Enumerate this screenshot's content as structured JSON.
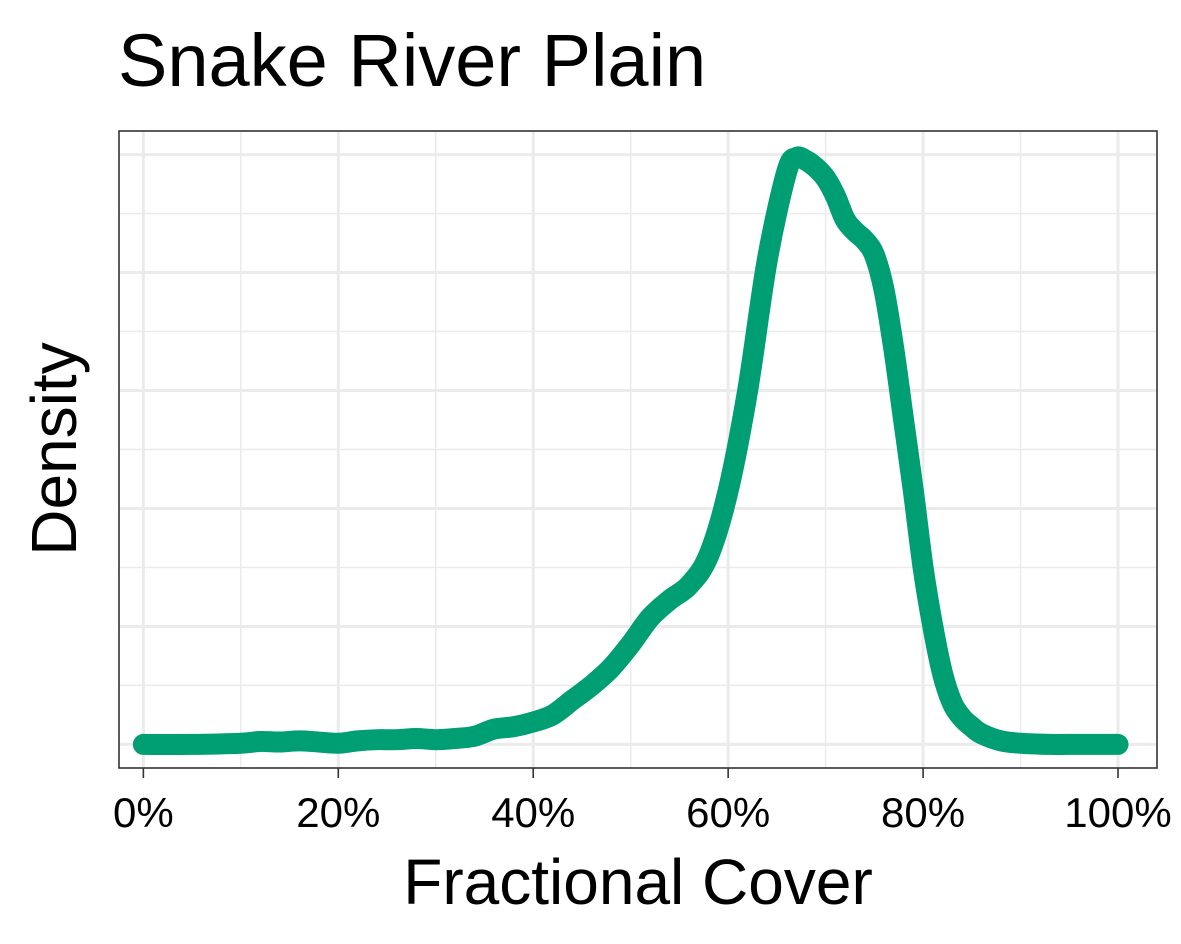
{
  "chart_data": {
    "type": "line",
    "title": "Snake River Plain",
    "xlabel": "Fractional Cover",
    "ylabel": "Density",
    "x_ticks": [
      0,
      20,
      40,
      60,
      80,
      100
    ],
    "x_tick_labels": [
      "0%",
      "20%",
      "40%",
      "60%",
      "80%",
      "100%"
    ],
    "xlim": [
      -2.5,
      104
    ],
    "ylim": [
      -0.04,
      1.04
    ],
    "y_tick_labels_shown": false,
    "grid": true,
    "line_color": "#009E73",
    "series": [
      {
        "x": [
          0,
          5,
          10,
          12,
          14,
          16,
          18,
          20,
          22,
          24,
          26,
          28,
          30,
          32,
          34,
          36,
          38,
          40,
          42,
          44,
          46,
          48,
          50,
          52,
          54,
          56,
          58,
          60,
          62,
          64,
          66,
          67,
          68,
          69,
          70,
          71,
          72,
          73,
          74,
          75,
          76,
          77,
          78,
          79,
          80,
          81,
          82,
          83,
          84,
          85,
          86,
          88,
          90,
          93,
          95,
          100
        ],
        "y": [
          0,
          0,
          0.002,
          0.005,
          0.004,
          0.006,
          0.004,
          0.002,
          0.006,
          0.008,
          0.008,
          0.01,
          0.008,
          0.01,
          0.014,
          0.026,
          0.03,
          0.038,
          0.05,
          0.075,
          0.1,
          0.13,
          0.17,
          0.215,
          0.245,
          0.27,
          0.32,
          0.43,
          0.6,
          0.82,
          0.97,
          0.995,
          0.99,
          0.978,
          0.96,
          0.93,
          0.89,
          0.87,
          0.855,
          0.83,
          0.77,
          0.67,
          0.55,
          0.43,
          0.3,
          0.2,
          0.12,
          0.07,
          0.045,
          0.03,
          0.018,
          0.006,
          0.002,
          0,
          0,
          0
        ]
      }
    ]
  }
}
